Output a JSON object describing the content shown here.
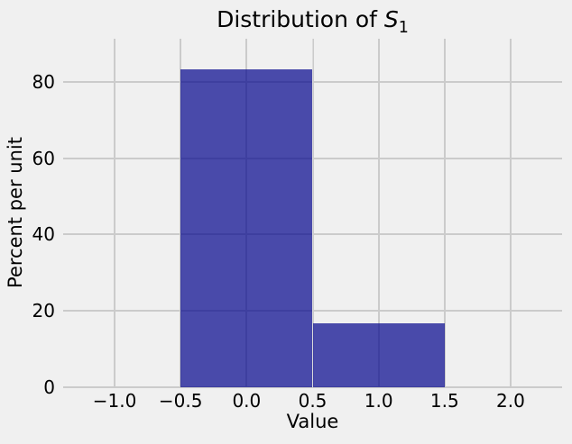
{
  "figure": {
    "background": "#f0f0f0",
    "title": {
      "prefix": "Distribution of ",
      "variable": "S",
      "subscript": "1"
    }
  },
  "chart_data": {
    "type": "bar",
    "subtype": "histogram",
    "title": "Distribution of S_1",
    "xlabel": "Value",
    "ylabel": "Percent per unit",
    "bins": [
      [
        -0.5,
        0.5
      ],
      [
        0.5,
        1.5
      ]
    ],
    "heights_percent_per_unit": [
      83.33,
      16.67
    ],
    "xlim": [
      -1.39,
      2.39
    ],
    "ylim": [
      0,
      91.3
    ],
    "xticks": [
      -1.0,
      -0.5,
      0.0,
      0.5,
      1.0,
      1.5,
      2.0
    ],
    "xtick_labels": [
      "−1.0",
      "−0.5",
      "0.0",
      "0.5",
      "1.0",
      "1.5",
      "2.0"
    ],
    "yticks": [
      0,
      20,
      40,
      60,
      80
    ],
    "ytick_labels": [
      "0",
      "20",
      "40",
      "60",
      "80"
    ],
    "grid": true,
    "legend": false,
    "bar_color": "#01038c",
    "bar_alpha": 0.7,
    "grid_color": "#cbcbcb",
    "background_color": "#f0f0f0",
    "text_color": "#000000"
  }
}
